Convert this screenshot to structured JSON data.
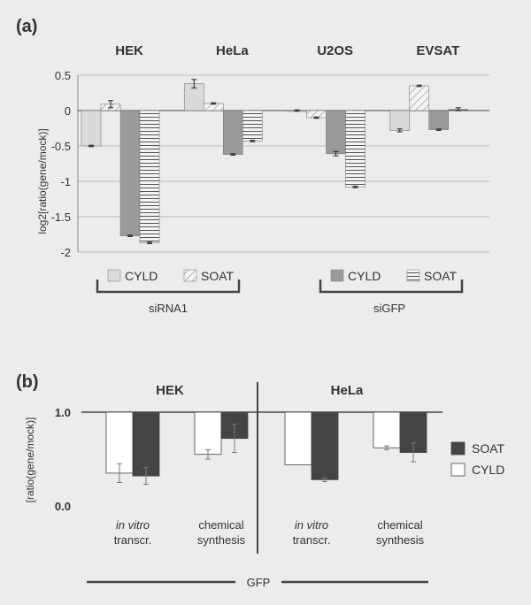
{
  "panel_a": {
    "label": "(a)",
    "chart_data": {
      "type": "bar",
      "categories": [
        "HEK",
        "HeLa",
        "U2OS",
        "EVSAT"
      ],
      "ylabel": "log2[ratio(gene/mock)]",
      "ylim": [
        -2,
        0.5
      ],
      "yticks": [
        "0.5",
        "0",
        "-0.5",
        "-1",
        "-1.5",
        "-2"
      ],
      "grid": true,
      "series": [
        {
          "name": "siRNA1 CYLD",
          "fill": "light",
          "values": [
            -0.5,
            0.38,
            0.0,
            -0.28
          ],
          "errors": [
            0.01,
            0.06,
            0.01,
            0.02
          ]
        },
        {
          "name": "siRNA1 SOAT",
          "fill": "diagonal",
          "values": [
            0.09,
            0.1,
            -0.1,
            0.35
          ],
          "errors": [
            0.05,
            0.01,
            0.01,
            0.01
          ]
        },
        {
          "name": "siGFP CYLD",
          "fill": "dark",
          "values": [
            -1.77,
            -0.62,
            -0.61,
            -0.27
          ],
          "errors": [
            0.01,
            0.01,
            0.03,
            0.01
          ]
        },
        {
          "name": "siGFP SOAT",
          "fill": "horizontal",
          "values": [
            -1.87,
            -0.43,
            -1.08,
            0.02
          ],
          "errors": [
            0.01,
            0.01,
            0.01,
            0.02
          ]
        }
      ],
      "legend_groups": [
        {
          "group": "siRNA1",
          "items": [
            {
              "label": "CYLD",
              "fill": "light"
            },
            {
              "label": "SOAT",
              "fill": "diagonal"
            }
          ]
        },
        {
          "group": "siGFP",
          "items": [
            {
              "label": "CYLD",
              "fill": "dark"
            },
            {
              "label": "SOAT",
              "fill": "horizontal"
            }
          ]
        }
      ]
    }
  },
  "panel_b": {
    "label": "(b)",
    "chart_data": {
      "type": "bar",
      "ylabel": "[ratio(gene/mock)]",
      "ylim": [
        0.0,
        1.0
      ],
      "yticks": [
        "1.0",
        "0.0"
      ],
      "panels": [
        {
          "title": "HEK",
          "groups": [
            {
              "label_italic": "in vitro",
              "label": "transcr.",
              "cyld": 0.35,
              "cyld_err": 0.1,
              "soat": 0.32,
              "soat_err": 0.09
            },
            {
              "label_italic": "",
              "label": "chemical synthesis",
              "label_line1": "chemical",
              "label_line2": "synthesis",
              "cyld": 0.55,
              "cyld_err": 0.05,
              "soat": 0.72,
              "soat_err": 0.15
            }
          ]
        },
        {
          "title": "HeLa",
          "groups": [
            {
              "label_italic": "in vitro",
              "label": "transcr.",
              "cyld": 0.44,
              "cyld_err": 0.0,
              "soat": 0.28,
              "soat_err": 0.02
            },
            {
              "label_italic": "",
              "label": "chemical synthesis",
              "label_line1": "chemical",
              "label_line2": "synthesis",
              "cyld": 0.62,
              "cyld_err": 0.02,
              "soat": 0.57,
              "soat_err": 0.1
            }
          ]
        }
      ],
      "legend": [
        {
          "label": "SOAT",
          "fill": "dark"
        },
        {
          "label": "CYLD",
          "fill": "white"
        }
      ],
      "footer": "GFP"
    }
  },
  "colors": {
    "light": "#dadada",
    "dark": "#9a9a9a",
    "darkest": "#444444",
    "grid": "#bdbdbd",
    "text": "#333333"
  }
}
